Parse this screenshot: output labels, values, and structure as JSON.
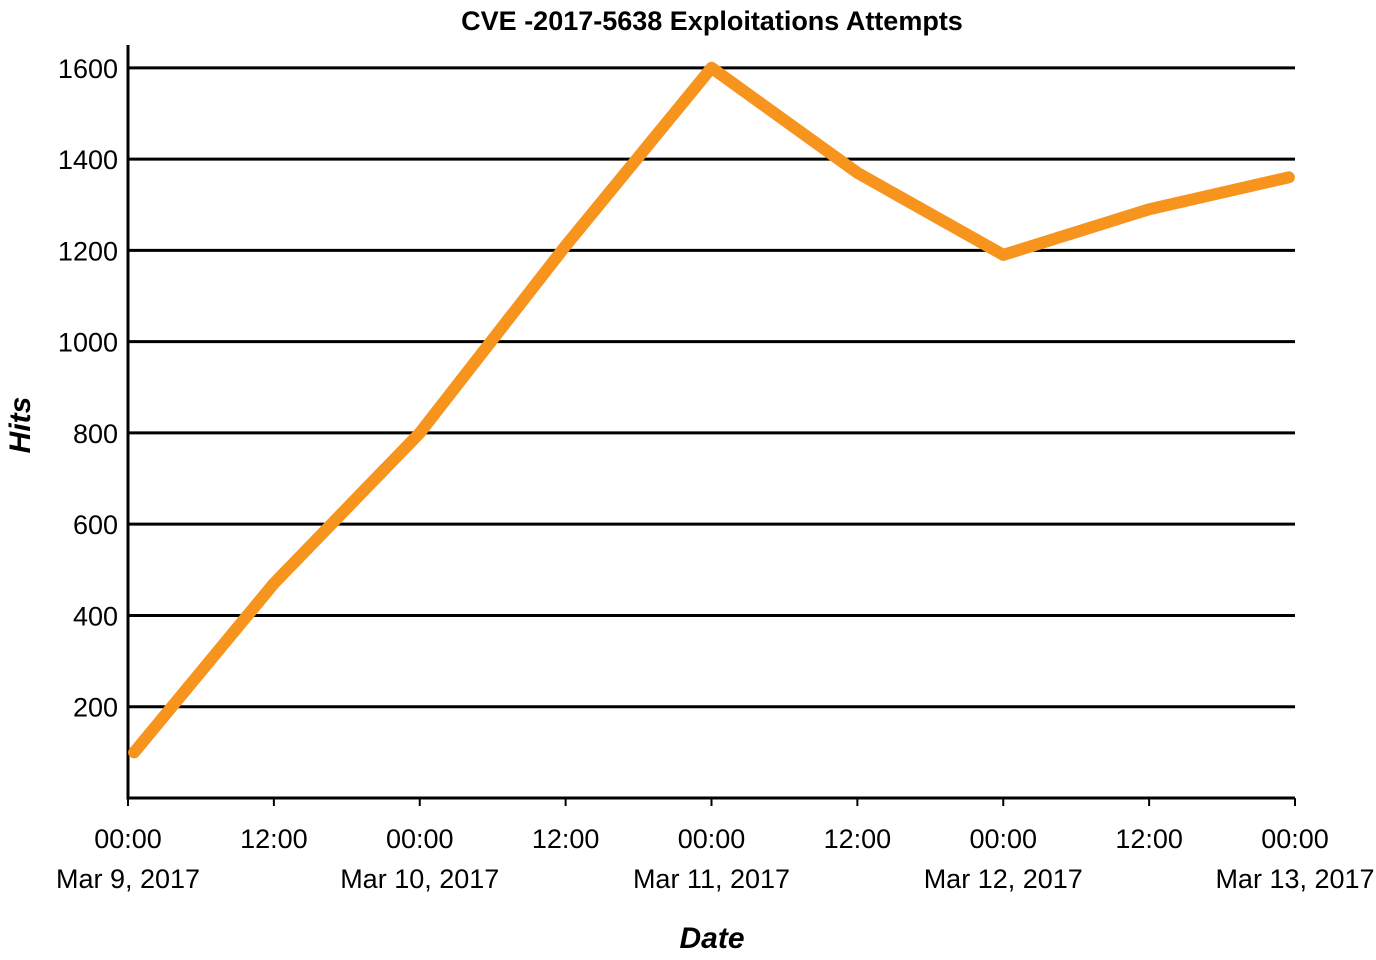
{
  "chart_data": {
    "type": "line",
    "title": "CVE -2017-5638 Exploitations Attempts",
    "xlabel": "Date",
    "ylabel": "Hits",
    "ylim": [
      0,
      1650
    ],
    "yticks": [
      200,
      400,
      600,
      800,
      1000,
      1200,
      1400,
      1600
    ],
    "grid": true,
    "x_hours": [
      0,
      12,
      24,
      36,
      48,
      60,
      72,
      84,
      96
    ],
    "x_tick_labels": [
      {
        "time": "00:00",
        "date": "Mar 9, 2017"
      },
      {
        "time": "12:00",
        "date": ""
      },
      {
        "time": "00:00",
        "date": "Mar 10, 2017"
      },
      {
        "time": "12:00",
        "date": ""
      },
      {
        "time": "00:00",
        "date": "Mar 11, 2017"
      },
      {
        "time": "12:00",
        "date": ""
      },
      {
        "time": "00:00",
        "date": "Mar 12, 2017"
      },
      {
        "time": "12:00",
        "date": ""
      },
      {
        "time": "00:00",
        "date": "Mar 13, 2017"
      }
    ],
    "series": [
      {
        "name": "Hits",
        "color": "#f7941d",
        "x": [
          0.5,
          12,
          24,
          36,
          48,
          60,
          72,
          84,
          95.5
        ],
        "values": [
          100,
          470,
          800,
          1210,
          1600,
          1370,
          1190,
          1290,
          1360
        ]
      }
    ]
  }
}
